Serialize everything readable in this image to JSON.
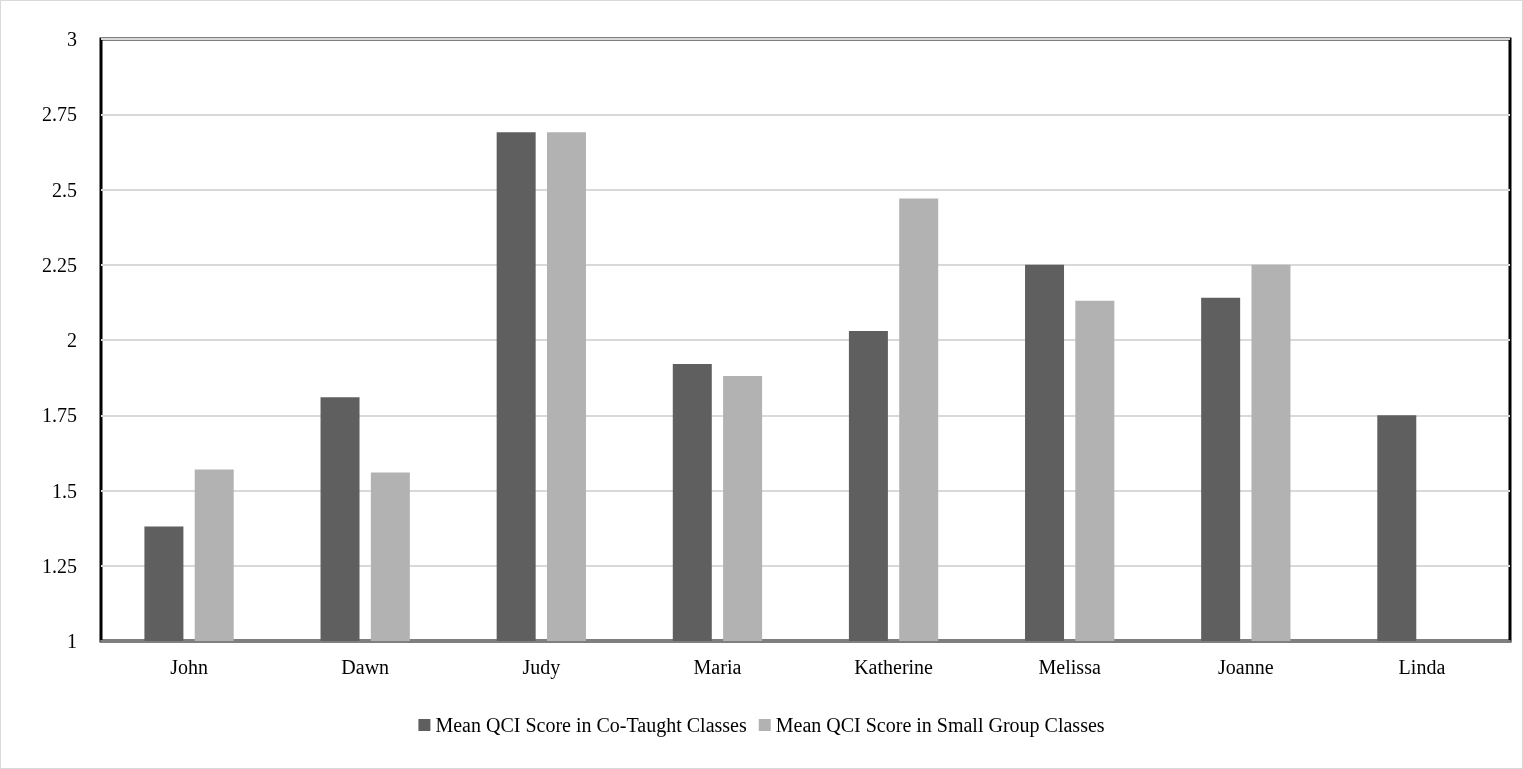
{
  "chart_data": {
    "type": "bar",
    "categories": [
      "John",
      "Dawn",
      "Judy",
      "Maria",
      "Katherine",
      "Melissa",
      "Joanne",
      "Linda"
    ],
    "series": [
      {
        "name": "Mean QCI Score in Co-Taught Classes",
        "color": "#5f5f5f",
        "values": [
          1.38,
          1.81,
          2.69,
          1.92,
          2.03,
          2.25,
          2.14,
          1.75
        ]
      },
      {
        "name": "Mean QCI Score in Small Group Classes",
        "color": "#b2b2b2",
        "values": [
          1.57,
          1.56,
          2.69,
          1.88,
          2.47,
          2.13,
          2.25,
          null
        ]
      }
    ],
    "ylim": [
      1,
      3
    ],
    "yticks": [
      1,
      1.25,
      1.5,
      1.75,
      2,
      2.25,
      2.5,
      2.75,
      3
    ],
    "grid": "y",
    "legend": "bottom"
  }
}
